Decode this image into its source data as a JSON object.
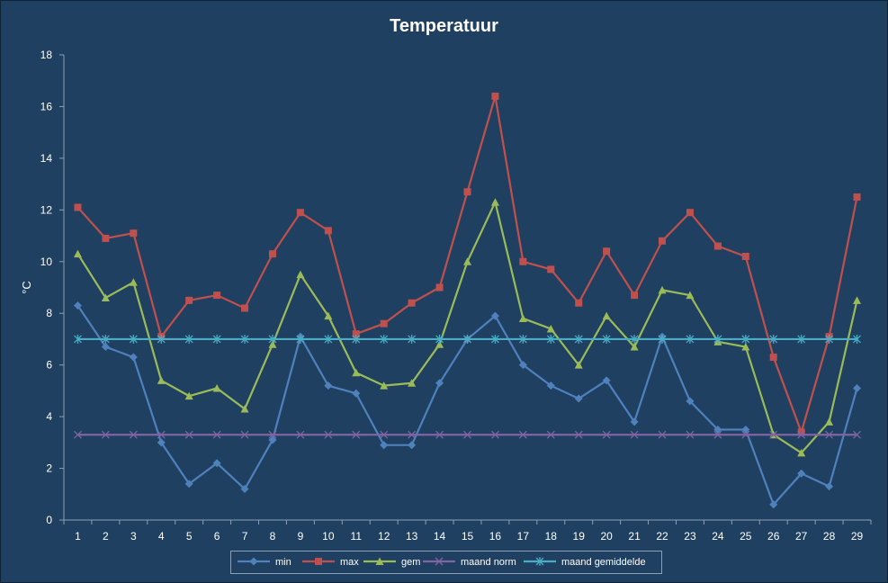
{
  "chart_data": {
    "type": "line",
    "title": "Temperatuur",
    "xlabel": "",
    "ylabel": "°C",
    "x": [
      1,
      2,
      3,
      4,
      5,
      6,
      7,
      8,
      9,
      10,
      11,
      12,
      13,
      14,
      15,
      16,
      17,
      18,
      19,
      20,
      21,
      22,
      23,
      24,
      25,
      26,
      27,
      28,
      29
    ],
    "ylim": [
      0,
      18
    ],
    "yticks": [
      0,
      2,
      4,
      6,
      8,
      10,
      12,
      14,
      16,
      18
    ],
    "grid": false,
    "legend_position": "bottom",
    "series": [
      {
        "name": "min",
        "color": "#4f81bd",
        "marker": "diamond",
        "values": [
          8.3,
          6.7,
          6.3,
          3.0,
          1.4,
          2.2,
          1.2,
          3.1,
          7.1,
          5.2,
          4.9,
          2.9,
          2.9,
          5.3,
          7.0,
          7.9,
          6.0,
          5.2,
          4.7,
          5.4,
          3.8,
          7.1,
          4.6,
          3.5,
          3.5,
          0.6,
          1.8,
          1.3,
          5.1
        ]
      },
      {
        "name": "max",
        "color": "#c0504d",
        "marker": "square",
        "values": [
          12.1,
          10.9,
          11.1,
          7.1,
          8.5,
          8.7,
          8.2,
          10.3,
          11.9,
          11.2,
          7.2,
          7.6,
          8.4,
          9.0,
          12.7,
          16.4,
          10.0,
          9.7,
          8.4,
          10.4,
          8.7,
          10.8,
          11.9,
          10.6,
          10.2,
          6.3,
          3.4,
          7.1,
          12.5
        ]
      },
      {
        "name": "gem",
        "color": "#9bbb59",
        "marker": "triangle",
        "values": [
          10.3,
          8.6,
          9.2,
          5.4,
          4.8,
          5.1,
          4.3,
          6.8,
          9.5,
          7.9,
          5.7,
          5.2,
          5.3,
          6.8,
          10.0,
          12.3,
          7.8,
          7.4,
          6.0,
          7.9,
          6.7,
          8.9,
          8.7,
          6.9,
          6.7,
          3.3,
          2.6,
          3.8,
          8.5
        ]
      },
      {
        "name": "maand norm",
        "color": "#8064a2",
        "marker": "x",
        "values": [
          3.3,
          3.3,
          3.3,
          3.3,
          3.3,
          3.3,
          3.3,
          3.3,
          3.3,
          3.3,
          3.3,
          3.3,
          3.3,
          3.3,
          3.3,
          3.3,
          3.3,
          3.3,
          3.3,
          3.3,
          3.3,
          3.3,
          3.3,
          3.3,
          3.3,
          3.3,
          3.3,
          3.3,
          3.3
        ]
      },
      {
        "name": "maand gemiddelde",
        "color": "#4bacc6",
        "marker": "star",
        "values": [
          7.0,
          7.0,
          7.0,
          7.0,
          7.0,
          7.0,
          7.0,
          7.0,
          7.0,
          7.0,
          7.0,
          7.0,
          7.0,
          7.0,
          7.0,
          7.0,
          7.0,
          7.0,
          7.0,
          7.0,
          7.0,
          7.0,
          7.0,
          7.0,
          7.0,
          7.0,
          7.0,
          7.0,
          7.0
        ]
      }
    ]
  }
}
